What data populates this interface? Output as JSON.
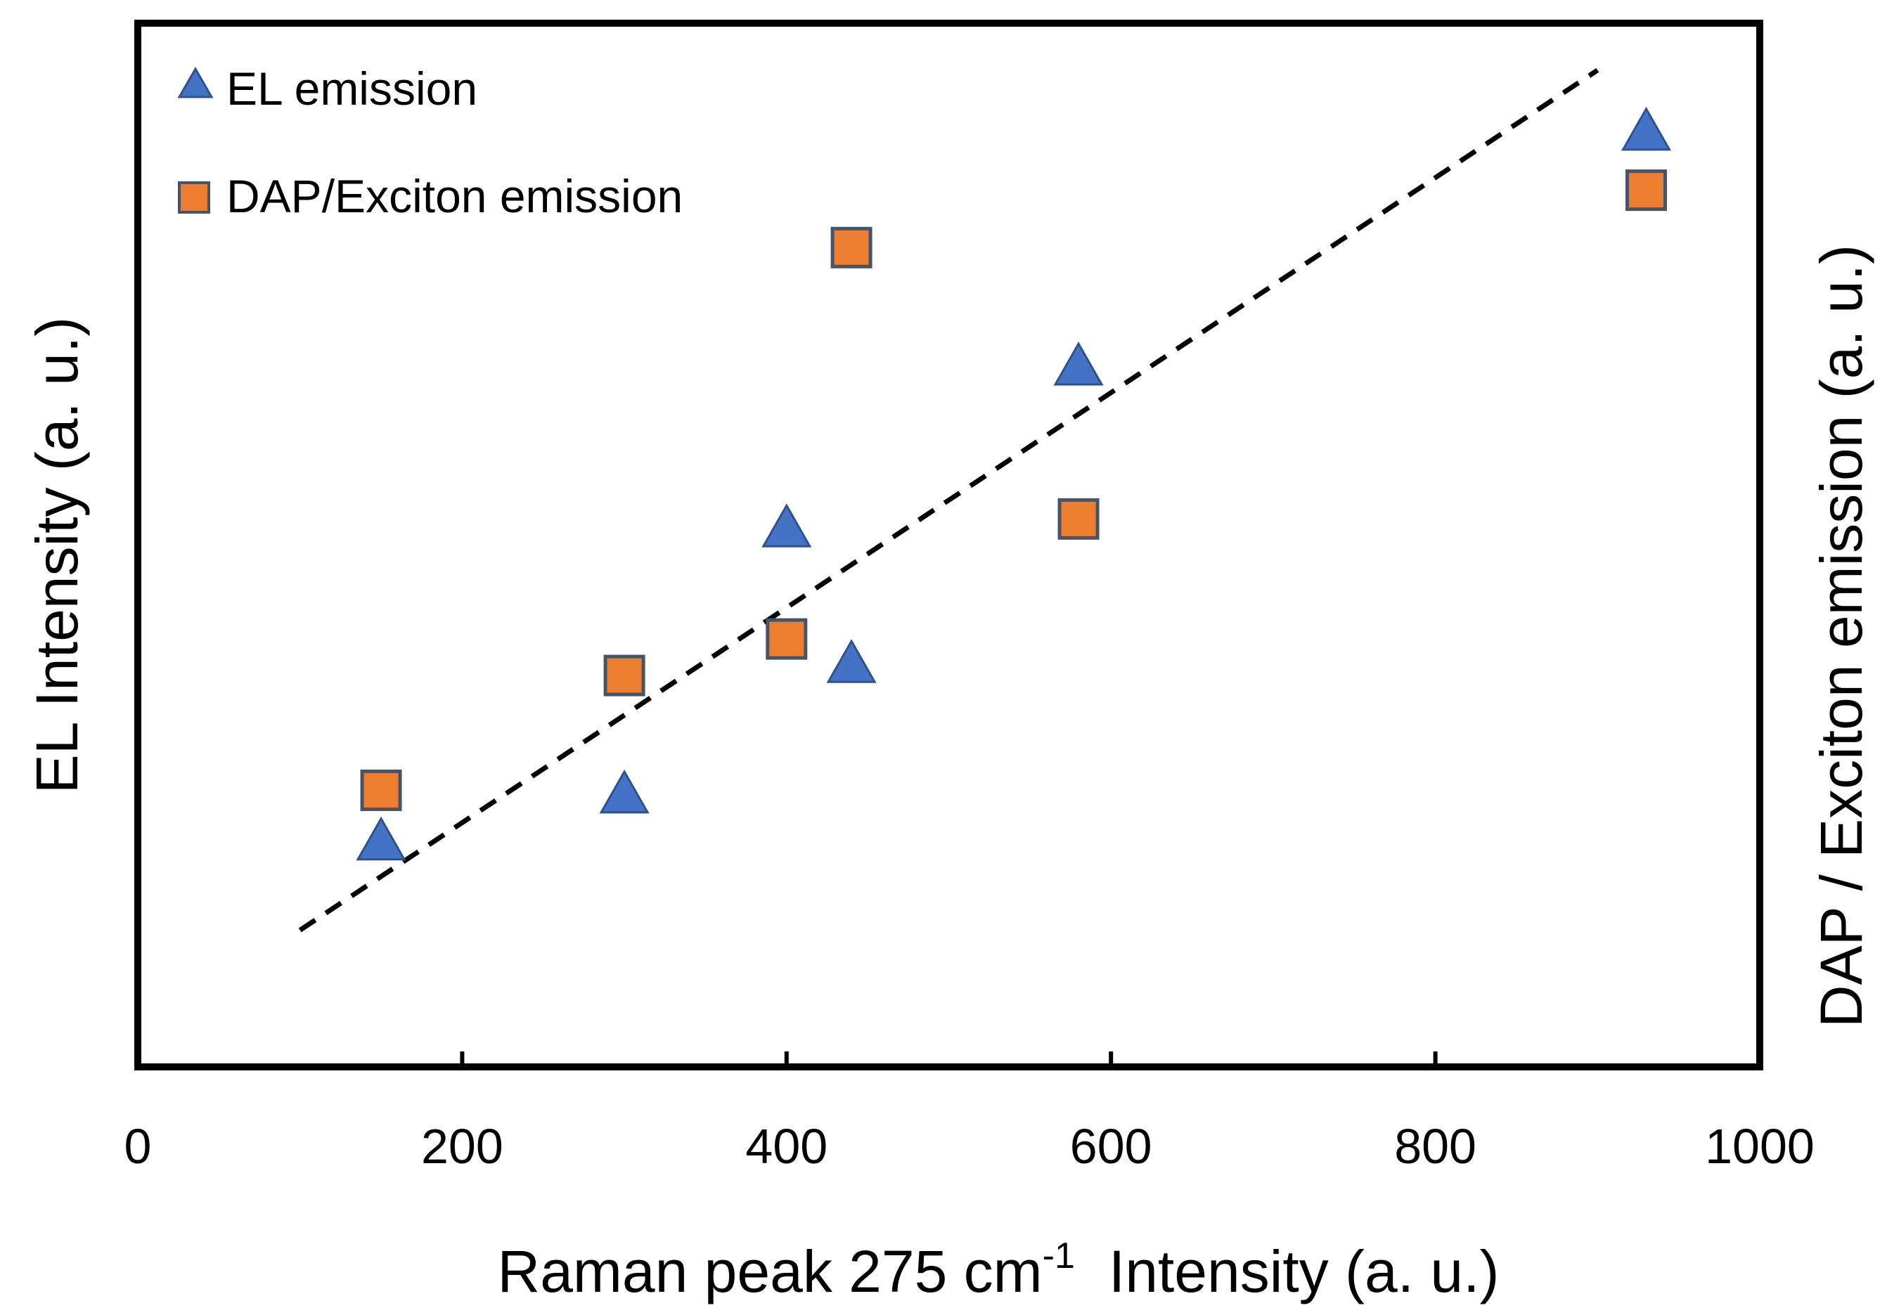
{
  "chart_data": {
    "type": "scatter",
    "title": "",
    "xlabel": "Raman peak 275 cm",
    "xlabel_superscript": "-1",
    "xlabel_suffix": "Intensity (a. u.)",
    "ylabel": "EL Intensity (a. u.)",
    "y2label": "DAP / Exciton emission (a. u.)",
    "xlim": [
      0,
      1000
    ],
    "x_ticks": [
      0,
      200,
      400,
      600,
      800,
      1000
    ],
    "x_tick_labels": [
      "0",
      "200",
      "400",
      "600",
      "800",
      "1000"
    ],
    "ylim": [
      0,
      1
    ],
    "y_ticks_shown": false,
    "grid": false,
    "legend_position": "top-left",
    "series": [
      {
        "name": "EL emission",
        "marker": "triangle",
        "color": "#4472C4",
        "points": [
          {
            "x": 150,
            "y": 0.215
          },
          {
            "x": 300,
            "y": 0.26
          },
          {
            "x": 400,
            "y": 0.515
          },
          {
            "x": 440,
            "y": 0.385
          },
          {
            "x": 580,
            "y": 0.67
          },
          {
            "x": 930,
            "y": 0.895
          }
        ]
      },
      {
        "name": "DAP/Exciton emission",
        "marker": "square",
        "color": "#ED7D31",
        "points": [
          {
            "x": 150,
            "y": 0.265
          },
          {
            "x": 300,
            "y": 0.375
          },
          {
            "x": 400,
            "y": 0.41
          },
          {
            "x": 440,
            "y": 0.785
          },
          {
            "x": 580,
            "y": 0.525
          },
          {
            "x": 930,
            "y": 0.84
          }
        ]
      }
    ],
    "trendline": {
      "style": "dashed",
      "color": "#000000",
      "x": [
        100,
        900
      ],
      "y": [
        0.131,
        0.955
      ]
    }
  }
}
